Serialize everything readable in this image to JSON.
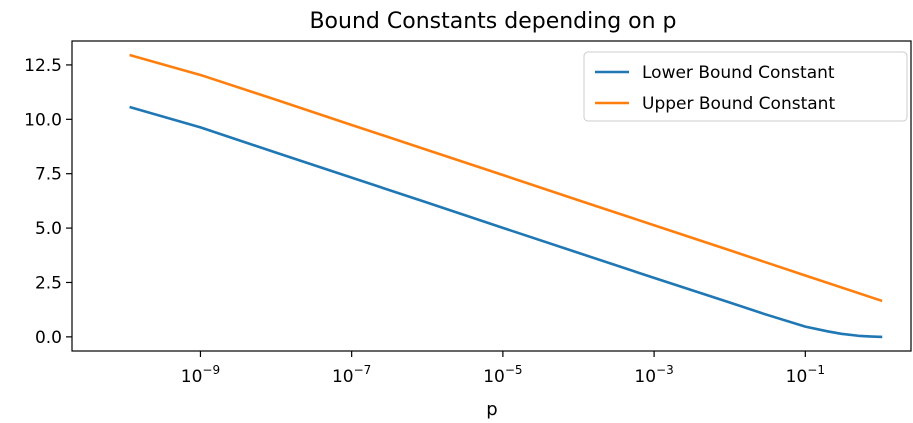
{
  "chart_data": {
    "type": "line",
    "title": "Bound Constants depending on p",
    "xlabel": "p",
    "ylabel": "",
    "x_scale": "log",
    "xlim": [
      2e-11,
      2.5
    ],
    "ylim": [
      -0.65,
      13.6
    ],
    "x_ticks": [
      {
        "value": 1e-09,
        "base": "10",
        "exp": "−9"
      },
      {
        "value": 1e-07,
        "base": "10",
        "exp": "−7"
      },
      {
        "value": 1e-05,
        "base": "10",
        "exp": "−5"
      },
      {
        "value": 0.001,
        "base": "10",
        "exp": "−3"
      },
      {
        "value": 0.1,
        "base": "10",
        "exp": "−1"
      }
    ],
    "y_ticks": [
      {
        "value": 0.0,
        "label": "0.0"
      },
      {
        "value": 2.5,
        "label": "2.5"
      },
      {
        "value": 5.0,
        "label": "5.0"
      },
      {
        "value": 7.5,
        "label": "7.5"
      },
      {
        "value": 10.0,
        "label": "10.0"
      },
      {
        "value": 12.5,
        "label": "12.5"
      }
    ],
    "grid": false,
    "legend_position": "upper right",
    "series": [
      {
        "name": "Lower Bound Constant",
        "color": "#1f77b4",
        "x": [
          1.2e-10,
          1e-09,
          1e-08,
          1e-07,
          1e-06,
          1e-05,
          0.0001,
          0.001,
          0.01,
          0.03,
          0.1,
          0.2,
          0.3,
          0.5,
          0.7,
          1.0
        ],
        "y": [
          10.55,
          9.63,
          8.47,
          7.32,
          6.17,
          5.01,
          3.86,
          2.71,
          1.58,
          1.03,
          0.47,
          0.25,
          0.14,
          0.05,
          0.02,
          0.0
        ]
      },
      {
        "name": "Upper Bound Constant",
        "color": "#ff7f0e",
        "x": [
          1.2e-10,
          1e-09,
          1e-08,
          1e-07,
          1e-06,
          1e-05,
          0.0001,
          0.001,
          0.01,
          0.1,
          1.0
        ],
        "y": [
          12.94,
          12.04,
          10.9,
          9.74,
          8.59,
          7.44,
          6.28,
          5.13,
          3.98,
          2.82,
          1.67
        ]
      }
    ]
  }
}
